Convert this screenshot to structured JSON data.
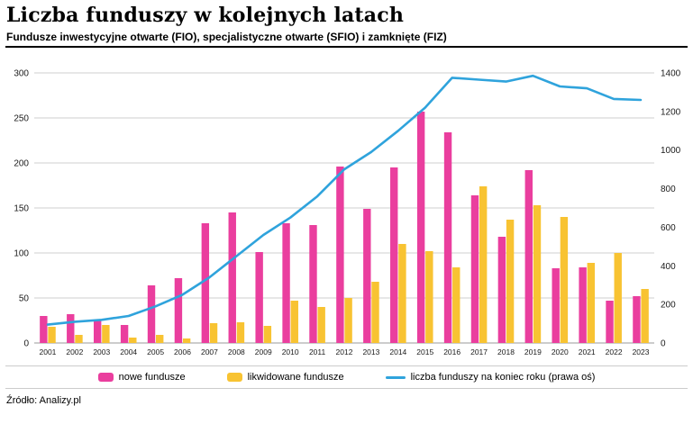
{
  "chart_data": {
    "type": "bar",
    "title": "Liczba funduszy w kolejnych latach",
    "subtitle": "Fundusze inwestycyjne otwarte (FIO), specjalistyczne otwarte (SFIO) i zamknięte (FIZ)",
    "categories": [
      "2001",
      "2002",
      "2003",
      "2004",
      "2005",
      "2006",
      "2007",
      "2008",
      "2009",
      "2010",
      "2011",
      "2012",
      "2013",
      "2014",
      "2015",
      "2016",
      "2017",
      "2018",
      "2019",
      "2020",
      "2021",
      "2022",
      "2023"
    ],
    "series": [
      {
        "name": "nowe fundusze",
        "type": "bar",
        "axis": "left",
        "values": [
          30,
          32,
          25,
          20,
          64,
          72,
          133,
          145,
          101,
          133,
          131,
          196,
          149,
          195,
          257,
          234,
          164,
          118,
          192,
          83,
          84,
          47,
          52
        ]
      },
      {
        "name": "likwidowane fundusze",
        "type": "bar",
        "axis": "left",
        "values": [
          18,
          9,
          20,
          6,
          9,
          5,
          22,
          23,
          19,
          47,
          40,
          50,
          68,
          110,
          102,
          84,
          174,
          137,
          153,
          140,
          89,
          100,
          60
        ]
      },
      {
        "name": "liczba funduszy na koniec roku (prawa oś)",
        "type": "line",
        "axis": "right",
        "values": [
          95,
          110,
          120,
          140,
          190,
          250,
          340,
          450,
          560,
          650,
          760,
          900,
          990,
          1100,
          1220,
          1375,
          1365,
          1355,
          1385,
          1330,
          1320,
          1265,
          1260
        ]
      }
    ],
    "left_axis": {
      "min": 0,
      "max": 300,
      "ticks": [
        0,
        50,
        100,
        150,
        200,
        250,
        300
      ]
    },
    "right_axis": {
      "min": 0,
      "max": 1400,
      "ticks": [
        0,
        200,
        400,
        600,
        800,
        1000,
        1200,
        1400
      ]
    },
    "grid": "horizontal",
    "legend_position": "bottom",
    "colors": {
      "new_funds": "#ea3e9e",
      "liquidated_funds": "#f8c332",
      "line": "#2fa3dc",
      "gridline": "#cfcfcf"
    }
  },
  "footer": {
    "source": "Źródło: Analizy.pl"
  }
}
